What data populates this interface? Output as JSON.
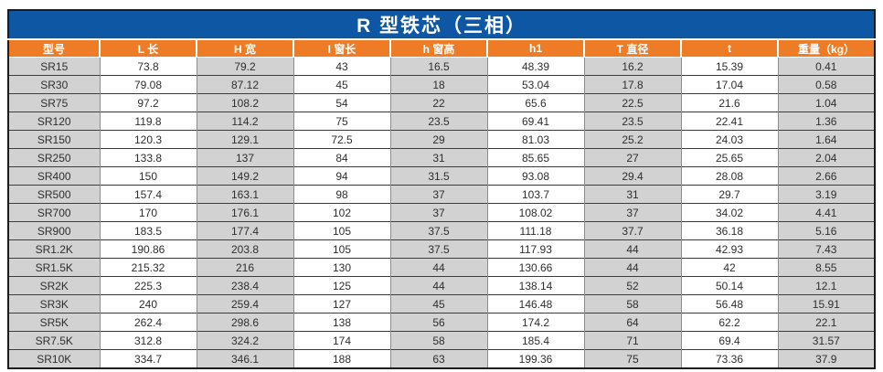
{
  "title": "R 型铁芯（三相）",
  "colors": {
    "title_bg": "#0d57a4",
    "header_bg": "#ee7c26",
    "header_text": "#ffffff",
    "odd_column_bg": "#d2d2d2",
    "even_column_bg": "#ffffff",
    "outer_border": "#1c1c1c",
    "cell_text": "#2e2e2e"
  },
  "chart_data": {
    "type": "table",
    "title": "R 型铁芯（三相）",
    "headers": [
      "型号",
      "L 长",
      "H 宽",
      "I 窗长",
      "h 窗高",
      "h1",
      "T 直径",
      "t",
      "重量（kg）"
    ],
    "rows": [
      [
        "SR15",
        "73.8",
        "79.2",
        "43",
        "16.5",
        "48.39",
        "16.2",
        "15.39",
        "0.41"
      ],
      [
        "SR30",
        "79.08",
        "87.12",
        "45",
        "18",
        "53.04",
        "17.8",
        "17.04",
        "0.58"
      ],
      [
        "SR75",
        "97.2",
        "108.2",
        "54",
        "22",
        "65.6",
        "22.5",
        "21.6",
        "1.04"
      ],
      [
        "SR120",
        "119.8",
        "114.2",
        "75",
        "23.5",
        "69.41",
        "23.5",
        "22.41",
        "1.36"
      ],
      [
        "SR150",
        "120.3",
        "129.1",
        "72.5",
        "29",
        "81.03",
        "25.2",
        "24.03",
        "1.64"
      ],
      [
        "SR250",
        "133.8",
        "137",
        "84",
        "31",
        "85.65",
        "27",
        "25.65",
        "2.04"
      ],
      [
        "SR400",
        "150",
        "149.2",
        "94",
        "31.5",
        "93.08",
        "29.4",
        "28.08",
        "2.66"
      ],
      [
        "SR500",
        "157.4",
        "163.1",
        "98",
        "37",
        "103.7",
        "31",
        "29.7",
        "3.19"
      ],
      [
        "SR700",
        "170",
        "176.1",
        "102",
        "37",
        "108.02",
        "37",
        "34.02",
        "4.41"
      ],
      [
        "SR900",
        "183.5",
        "177.4",
        "105",
        "37.5",
        "111.18",
        "37.7",
        "36.18",
        "5.16"
      ],
      [
        "SR1.2K",
        "190.86",
        "203.8",
        "105",
        "37.5",
        "117.93",
        "44",
        "42.93",
        "7.43"
      ],
      [
        "SR1.5K",
        "215.32",
        "216",
        "130",
        "44",
        "130.66",
        "44",
        "42",
        "8.55"
      ],
      [
        "SR2K",
        "225.3",
        "238.4",
        "125",
        "44",
        "138.14",
        "52",
        "50.14",
        "12.1"
      ],
      [
        "SR3K",
        "240",
        "259.4",
        "127",
        "45",
        "146.48",
        "58",
        "56.48",
        "15.91"
      ],
      [
        "SR5K",
        "262.4",
        "298.6",
        "138",
        "56",
        "174.2",
        "64",
        "62.2",
        "22.1"
      ],
      [
        "SR7.5K",
        "312.8",
        "324.2",
        "174",
        "58",
        "185.4",
        "71",
        "69.4",
        "31.57"
      ],
      [
        "SR10K",
        "334.7",
        "346.1",
        "188",
        "63",
        "199.36",
        "75",
        "73.36",
        "37.9"
      ]
    ]
  }
}
